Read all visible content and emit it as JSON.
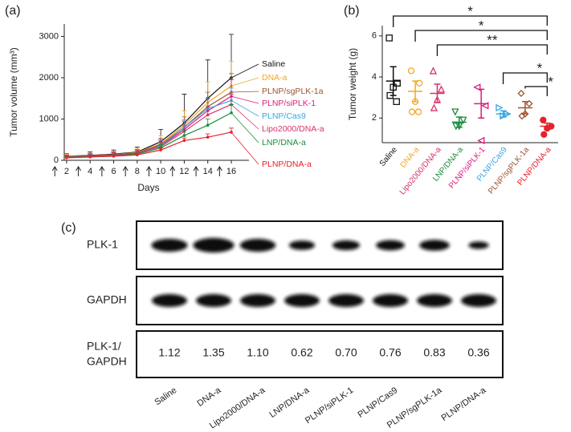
{
  "chart_data": [
    {
      "type": "line",
      "panel_label": "(a)",
      "xlabel": "Days",
      "ylabel": "Tumor volume (mm³)",
      "x": [
        2,
        4,
        6,
        8,
        10,
        12,
        14,
        16
      ],
      "xlim": [
        1.8,
        17.5
      ],
      "xticks": [
        2,
        4,
        6,
        8,
        10,
        12,
        14,
        16
      ],
      "ylim": [
        0,
        3300
      ],
      "yticks": [
        0,
        1000,
        2000,
        3000
      ],
      "dose_days": [
        1,
        3,
        5,
        7,
        9,
        11,
        13,
        15
      ],
      "series": [
        {
          "name": "Saline",
          "color": "#111111",
          "values": [
            100,
            120,
            150,
            200,
            450,
            900,
            1500,
            2000
          ],
          "errors": [
            60,
            80,
            100,
            120,
            300,
            700,
            930,
            1050
          ]
        },
        {
          "name": "DNA-a",
          "color": "#f5a623",
          "values": [
            100,
            110,
            140,
            190,
            400,
            850,
            1400,
            1800
          ],
          "errors": [
            50,
            60,
            80,
            100,
            200,
            350,
            500,
            600
          ]
        },
        {
          "name": "PLNP/sgPLK-1a",
          "color": "#a0522d",
          "values": [
            90,
            110,
            140,
            180,
            380,
            800,
            1300,
            1650
          ],
          "errors": [
            40,
            50,
            60,
            80,
            150,
            250,
            350,
            450
          ]
        },
        {
          "name": "PLNP/siPLK-1",
          "color": "#e0197d",
          "values": [
            80,
            100,
            130,
            170,
            350,
            750,
            1200,
            1550
          ],
          "errors": [
            40,
            50,
            60,
            80,
            150,
            200,
            300,
            400
          ]
        },
        {
          "name": "PLNP/Cas9",
          "color": "#3aa6dd",
          "values": [
            90,
            100,
            130,
            170,
            350,
            800,
            1250,
            1450
          ],
          "errors": [
            30,
            40,
            50,
            60,
            120,
            180,
            250,
            300
          ]
        },
        {
          "name": "Lipo2000/DNA-a",
          "color": "#d6336c",
          "values": [
            90,
            110,
            130,
            170,
            330,
            700,
            1100,
            1350
          ],
          "errors": [
            30,
            40,
            50,
            60,
            100,
            150,
            200,
            250
          ]
        },
        {
          "name": "LNP/DNA-a",
          "color": "#1a8c3a",
          "values": [
            70,
            90,
            110,
            150,
            300,
            600,
            850,
            1150
          ],
          "errors": [
            30,
            30,
            40,
            50,
            80,
            120,
            150,
            200
          ]
        },
        {
          "name": "PLNP/DNA-a",
          "color": "#e8202a",
          "values": [
            60,
            80,
            100,
            130,
            250,
            480,
            560,
            680
          ],
          "errors": [
            20,
            30,
            30,
            40,
            50,
            60,
            80,
            100
          ]
        }
      ]
    },
    {
      "type": "dot",
      "panel_label": "(b)",
      "ylabel": "Tumor weight (g)",
      "ylim": [
        0.8,
        6.5
      ],
      "yticks": [
        2,
        4,
        6
      ],
      "series": [
        {
          "name": "Saline",
          "color": "#111111",
          "marker": "square",
          "filled": false,
          "values": [
            5.9,
            3.7,
            3.5,
            3.1,
            2.8
          ],
          "mean": 3.8,
          "sem": 0.7
        },
        {
          "name": "DNA-a",
          "color": "#f5a623",
          "marker": "circle",
          "filled": false,
          "values": [
            4.3,
            3.7,
            2.8,
            2.3,
            2.3
          ],
          "mean": 3.3,
          "sem": 0.5
        },
        {
          "name": "Lipo2000/DNA-a",
          "color": "#d6336c",
          "marker": "triangle",
          "filled": false,
          "values": [
            4.3,
            3.4,
            2.9,
            2.5
          ],
          "mean": 3.2,
          "sem": 0.45
        },
        {
          "name": "LNP/DNA-a",
          "color": "#1a8c3a",
          "marker": "triangle-down",
          "filled": false,
          "values": [
            2.3,
            1.9,
            1.6,
            1.6
          ],
          "mean": 1.8,
          "sem": 0.25
        },
        {
          "name": "PLNP/siPLK-1",
          "color": "#e0197d",
          "marker": "triangle-left",
          "filled": false,
          "values": [
            3.5,
            2.6,
            0.9
          ],
          "mean": 2.7,
          "sem": 0.7
        },
        {
          "name": "PLNP/Cas9",
          "color": "#3aa6dd",
          "marker": "triangle-right",
          "filled": false,
          "values": [
            2.5,
            2.2,
            2.1
          ],
          "mean": 2.2,
          "sem": 0.15
        },
        {
          "name": "PLNP/sgPLK-1a",
          "color": "#a0522d",
          "marker": "diamond",
          "filled": false,
          "values": [
            3.2,
            2.7,
            2.2,
            2.1
          ],
          "mean": 2.5,
          "sem": 0.3
        },
        {
          "name": "PLNP/DNA-a",
          "color": "#e8202a",
          "marker": "circle",
          "filled": true,
          "values": [
            1.9,
            1.6,
            1.5,
            1.2
          ],
          "mean": 1.6,
          "sem": 0.15
        }
      ],
      "significance": [
        {
          "groups": [
            0,
            7
          ],
          "label": "*"
        },
        {
          "groups": [
            1,
            7
          ],
          "label": "*"
        },
        {
          "groups": [
            2,
            7
          ],
          "label": "**"
        },
        {
          "groups": [
            5,
            7
          ],
          "label": "*"
        },
        {
          "groups": [
            6,
            7
          ],
          "label": "*"
        }
      ]
    },
    {
      "type": "blot",
      "panel_label": "(c)",
      "rows": [
        "PLK-1",
        "GAPDH"
      ],
      "ratio_label": [
        "PLK-1/",
        "GAPDH"
      ],
      "categories": [
        "Saline",
        "DNA-a",
        "Lipo2000/DNA-a",
        "LNP/DNA-a",
        "PLNP/siPLK-1",
        "PLNP/Cas9",
        "PLNP/sgPLK-1a",
        "PLNP/DNA-a"
      ],
      "values": [
        1.12,
        1.35,
        1.1,
        0.62,
        0.7,
        0.76,
        0.83,
        0.36
      ],
      "value_labels": [
        "1.12",
        "1.35",
        "1.10",
        "0.62",
        "0.70",
        "0.76",
        "0.83",
        "0.36"
      ]
    }
  ]
}
